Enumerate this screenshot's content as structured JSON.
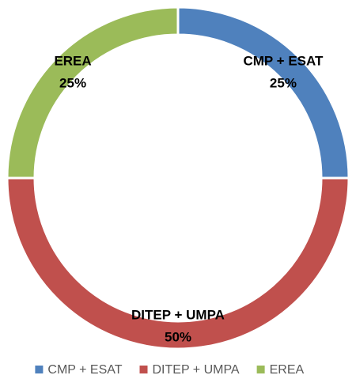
{
  "chart_data": {
    "type": "donut",
    "categories": [
      "CMP + ESAT",
      "DITEP + UMPA",
      "EREA"
    ],
    "values": [
      25,
      50,
      25
    ],
    "value_labels": [
      "25%",
      "50%",
      "25%"
    ],
    "colors": [
      "#4f81bd",
      "#c0504d",
      "#9bbb59"
    ],
    "legend": "bottom"
  }
}
